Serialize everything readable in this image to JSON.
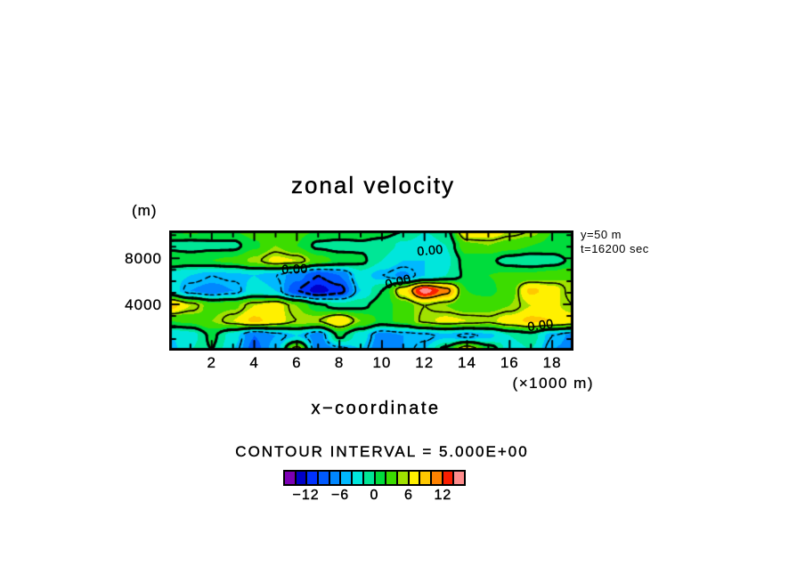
{
  "title": "zonal velocity",
  "y_axis": {
    "unit_label": "(m)",
    "max": 10400,
    "ticks": [
      {
        "value": 8000,
        "label": "8000"
      },
      {
        "value": 4000,
        "label": "4000"
      }
    ],
    "minor_ticks": [
      1000,
      2000,
      3000,
      5000,
      6000,
      7000,
      9000,
      10000
    ]
  },
  "x_axis": {
    "label": "x−coordinate",
    "unit_label": "(×1000 m)",
    "max": 19,
    "ticks": [
      {
        "value": 2,
        "label": "2"
      },
      {
        "value": 4,
        "label": "4"
      },
      {
        "value": 6,
        "label": "6"
      },
      {
        "value": 8,
        "label": "8"
      },
      {
        "value": 10,
        "label": "10"
      },
      {
        "value": 12,
        "label": "12"
      },
      {
        "value": 14,
        "label": "14"
      },
      {
        "value": 16,
        "label": "16"
      },
      {
        "value": 18,
        "label": "18"
      }
    ],
    "minor_ticks": [
      1,
      3,
      5,
      7,
      9,
      11,
      13,
      15,
      17
    ]
  },
  "annotations": {
    "line1": "y=50 m",
    "line2": "t=16200 sec"
  },
  "contour_note": "CONTOUR INTERVAL = 5.000E+00",
  "contour_labels": [
    {
      "text": "0.00",
      "fx": 0.31,
      "fy": 0.319,
      "rot": -2
    },
    {
      "text": "0.00",
      "fx": 0.645,
      "fy": 0.163,
      "rot": -5
    },
    {
      "text": "0.00",
      "fx": 0.566,
      "fy": 0.422,
      "rot": -14
    },
    {
      "text": "0.00",
      "fx": 0.918,
      "fy": 0.785,
      "rot": -8
    }
  ],
  "colorbar": {
    "min": -16,
    "max": 16,
    "colors": [
      "#7C00B4",
      "#0000C8",
      "#0032FF",
      "#005AFF",
      "#0087FF",
      "#00B9FF",
      "#00E6DC",
      "#00E696",
      "#00DC3C",
      "#3CDC00",
      "#A0E100",
      "#FFF000",
      "#FFC800",
      "#FF8200",
      "#FA1E00",
      "#FF8C8C"
    ],
    "labels": [
      {
        "value": -12,
        "text": "−12"
      },
      {
        "value": -6,
        "text": "−6"
      },
      {
        "value": 0,
        "text": "0"
      },
      {
        "value": 6,
        "text": "6"
      },
      {
        "value": 12,
        "text": "12"
      }
    ]
  },
  "chart_data": {
    "type": "heatmap",
    "subtype": "filled_contour",
    "title": "zonal velocity",
    "xlabel": "x−coordinate (×1000 m)",
    "ylabel": "(m)",
    "x_range": [
      0,
      19
    ],
    "y_range": [
      0,
      10400
    ],
    "fill_min": -16,
    "fill_max": 16,
    "fill_step": 2,
    "contour_interval": 5,
    "line_levels": [
      {
        "level": -10,
        "style": "dashed",
        "width": 2.4,
        "dash_period": 9,
        "dash_duty": 0.62
      },
      {
        "level": -5,
        "style": "dashed",
        "width": 1.3,
        "dash_period": 7.5,
        "dash_duty": 0.58
      },
      {
        "level": 0,
        "style": "solid",
        "width": 2.8
      },
      {
        "level": 5,
        "style": "solid",
        "width": 1.4
      },
      {
        "level": 10,
        "style": "solid",
        "width": 1.4
      },
      {
        "level": 15,
        "style": "solid",
        "width": 1.4
      }
    ],
    "grid_rows_y": [
      10400,
      9100,
      7800,
      6500,
      5200,
      3900,
      2600,
      1300,
      0
    ],
    "grid_cols_x": [
      0,
      1,
      2,
      3,
      4,
      5,
      6,
      7,
      8,
      9,
      10,
      11,
      12,
      13,
      14,
      15,
      16,
      17,
      18,
      19
    ],
    "values": [
      [
        2,
        2.5,
        2,
        2,
        3,
        3.5,
        2.5,
        2,
        2,
        1.5,
        1,
        0,
        -2,
        -1,
        8,
        8,
        6,
        5,
        2,
        2
      ],
      [
        -0.7,
        -1,
        -0.7,
        -0.7,
        1.5,
        4,
        2,
        -0.5,
        -1,
        -0.5,
        -1,
        -2.5,
        -3,
        -2,
        3.5,
        4,
        3,
        2,
        1.5,
        2
      ],
      [
        2,
        1.5,
        2,
        2.5,
        4.5,
        6.5,
        6,
        3,
        1.5,
        0.5,
        -2,
        -4,
        -4,
        -2.5,
        1,
        0.5,
        -1,
        -1.5,
        -1,
        0.5
      ],
      [
        -3,
        -4,
        -5,
        -4.5,
        -4,
        -5,
        -7,
        -10,
        -8,
        -3,
        -5,
        -6.5,
        -4,
        -2,
        0.5,
        2,
        2.5,
        2.5,
        3,
        4
      ],
      [
        -2,
        -6,
        -7,
        -6,
        -3,
        -4,
        -10,
        -13,
        -11,
        -4,
        0,
        7,
        15,
        11,
        2,
        1.5,
        3,
        8.5,
        7,
        4
      ],
      [
        9,
        6,
        3,
        3.5,
        6,
        7,
        4,
        0.5,
        -1,
        -0.5,
        1,
        3,
        5,
        4,
        2.5,
        3,
        4,
        6,
        6.5,
        5
      ],
      [
        2,
        2.5,
        4,
        6,
        8.5,
        7,
        5,
        5,
        8,
        4,
        1.5,
        2.5,
        5.5,
        6.5,
        6,
        5.5,
        7,
        8.5,
        8,
        7
      ],
      [
        -4,
        -3,
        0.5,
        -3,
        -8,
        -6,
        -4,
        -7,
        0.5,
        -3,
        -7,
        -6,
        -5.5,
        -4.5,
        -5.5,
        -4.5,
        -2,
        -1,
        -5,
        -6.5
      ],
      [
        -5,
        -2,
        0,
        -4,
        -9,
        -5,
        7,
        -8,
        -6,
        -4,
        -8,
        -6,
        -4,
        1,
        8,
        2,
        -3,
        -2,
        -6,
        -7
      ]
    ]
  }
}
